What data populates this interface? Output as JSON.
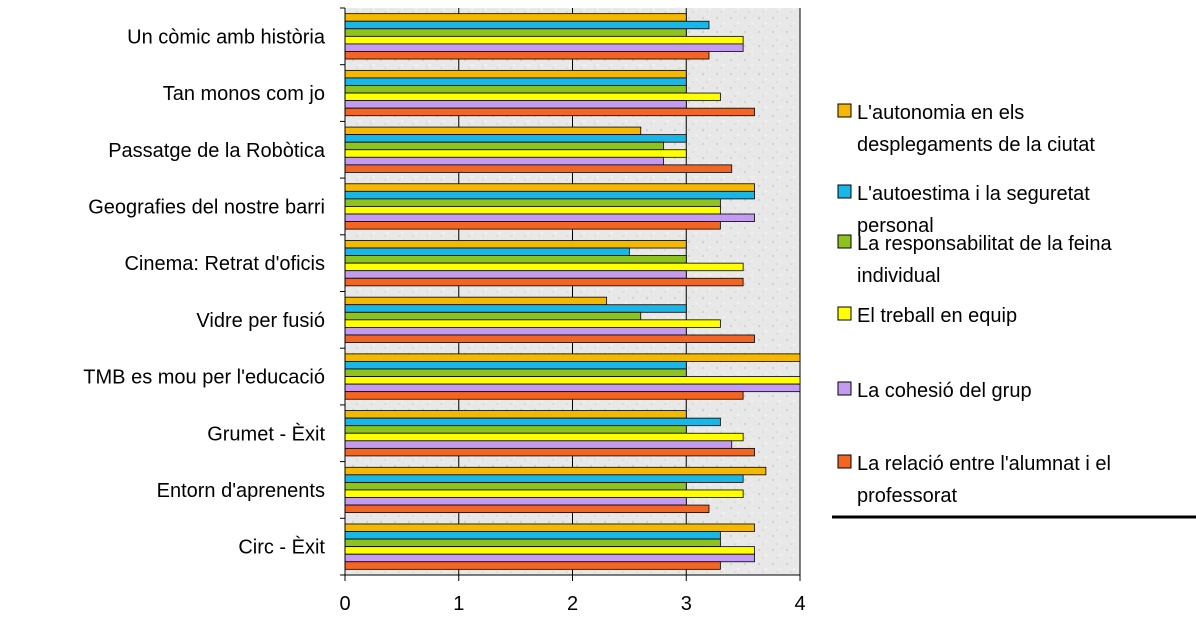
{
  "chart_data": {
    "type": "bar",
    "orientation": "horizontal",
    "categories": [
      "Un còmic amb història",
      "Tan monos com jo",
      "Passatge de la Robòtica",
      "Geografies del nostre barri",
      "Cinema: Retrat d'oficis",
      "Vidre per fusió",
      "TMB es mou per l'educació",
      "Grumet - Èxit",
      "Entorn d'aprenents",
      "Circ - Èxit"
    ],
    "series": [
      {
        "name": "L'autonomia en els desplegaments de la ciutat",
        "color": "#F5B800",
        "legend_lines": [
          "L'autonomia en els",
          "desplegaments de la ciutat"
        ],
        "values": [
          3.0,
          3.0,
          2.6,
          3.6,
          3.0,
          2.3,
          4.0,
          3.0,
          3.7,
          3.6
        ]
      },
      {
        "name": "L'autoestima i la seguretat personal",
        "color": "#18B7E8",
        "legend_lines": [
          "L'autoestima i la seguretat",
          "personal"
        ],
        "values": [
          3.2,
          3.0,
          3.0,
          3.6,
          2.5,
          3.0,
          3.0,
          3.3,
          3.5,
          3.3
        ]
      },
      {
        "name": "La responsabilitat de la feina individual",
        "color": "#8DC21F",
        "legend_lines": [
          "La responsabilitat de la feina",
          "individual"
        ],
        "values": [
          3.0,
          3.0,
          2.8,
          3.3,
          3.0,
          2.6,
          3.0,
          3.0,
          3.0,
          3.3
        ]
      },
      {
        "name": "El treball en equip",
        "color": "#FFFF00",
        "legend_lines": [
          "El treball en equip"
        ],
        "values": [
          3.5,
          3.3,
          3.0,
          3.3,
          3.5,
          3.3,
          4.0,
          3.5,
          3.5,
          3.6
        ]
      },
      {
        "name": "La cohesió del grup",
        "color": "#C39BF0",
        "legend_lines": [
          "La cohesió del grup"
        ],
        "values": [
          3.5,
          3.0,
          2.8,
          3.6,
          3.0,
          3.0,
          4.0,
          3.4,
          3.0,
          3.6
        ]
      },
      {
        "name": "La relació entre l'alumnat i el professorat",
        "color": "#F26522",
        "legend_lines": [
          "La relació entre l'alumnat i el",
          "professorat"
        ],
        "values": [
          3.2,
          3.6,
          3.4,
          3.3,
          3.5,
          3.6,
          3.5,
          3.6,
          3.2,
          3.3
        ]
      }
    ],
    "xlim": [
      0,
      4
    ],
    "xticks": [
      "0",
      "1",
      "2",
      "3",
      "4"
    ],
    "grid": true,
    "legend_position": "right",
    "title": "",
    "xlabel": "",
    "ylabel": ""
  }
}
